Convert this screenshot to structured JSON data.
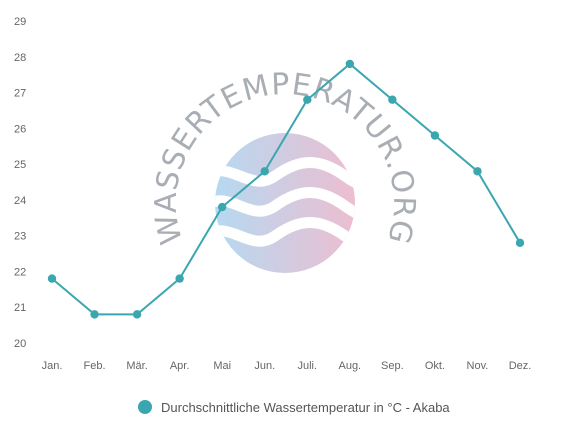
{
  "chart_data": {
    "type": "line",
    "categories": [
      "Jan.",
      "Feb.",
      "Mär.",
      "Apr.",
      "Mai",
      "Jun.",
      "Juli.",
      "Aug.",
      "Sep.",
      "Okt.",
      "Nov.",
      "Dez."
    ],
    "series": [
      {
        "name": "Durchschnittliche Wassertemperatur in °C - Akaba",
        "values": [
          21.8,
          20.8,
          20.8,
          21.8,
          23.8,
          24.8,
          26.8,
          27.8,
          26.8,
          25.8,
          24.8,
          22.8
        ]
      }
    ],
    "ylim": [
      20,
      29
    ],
    "yticks": [
      20,
      21,
      22,
      23,
      24,
      25,
      26,
      27,
      28,
      29
    ],
    "grid": false,
    "legend_position": "bottom-center",
    "colors": {
      "series": "#3aa6b0",
      "tick_text": "#666666"
    }
  },
  "watermark": {
    "text": "WASSERTEMPERATUR.ORG",
    "colors": {
      "left": "#a9d3ef",
      "right": "#eab3c9",
      "text": "#9aa1a8"
    }
  }
}
